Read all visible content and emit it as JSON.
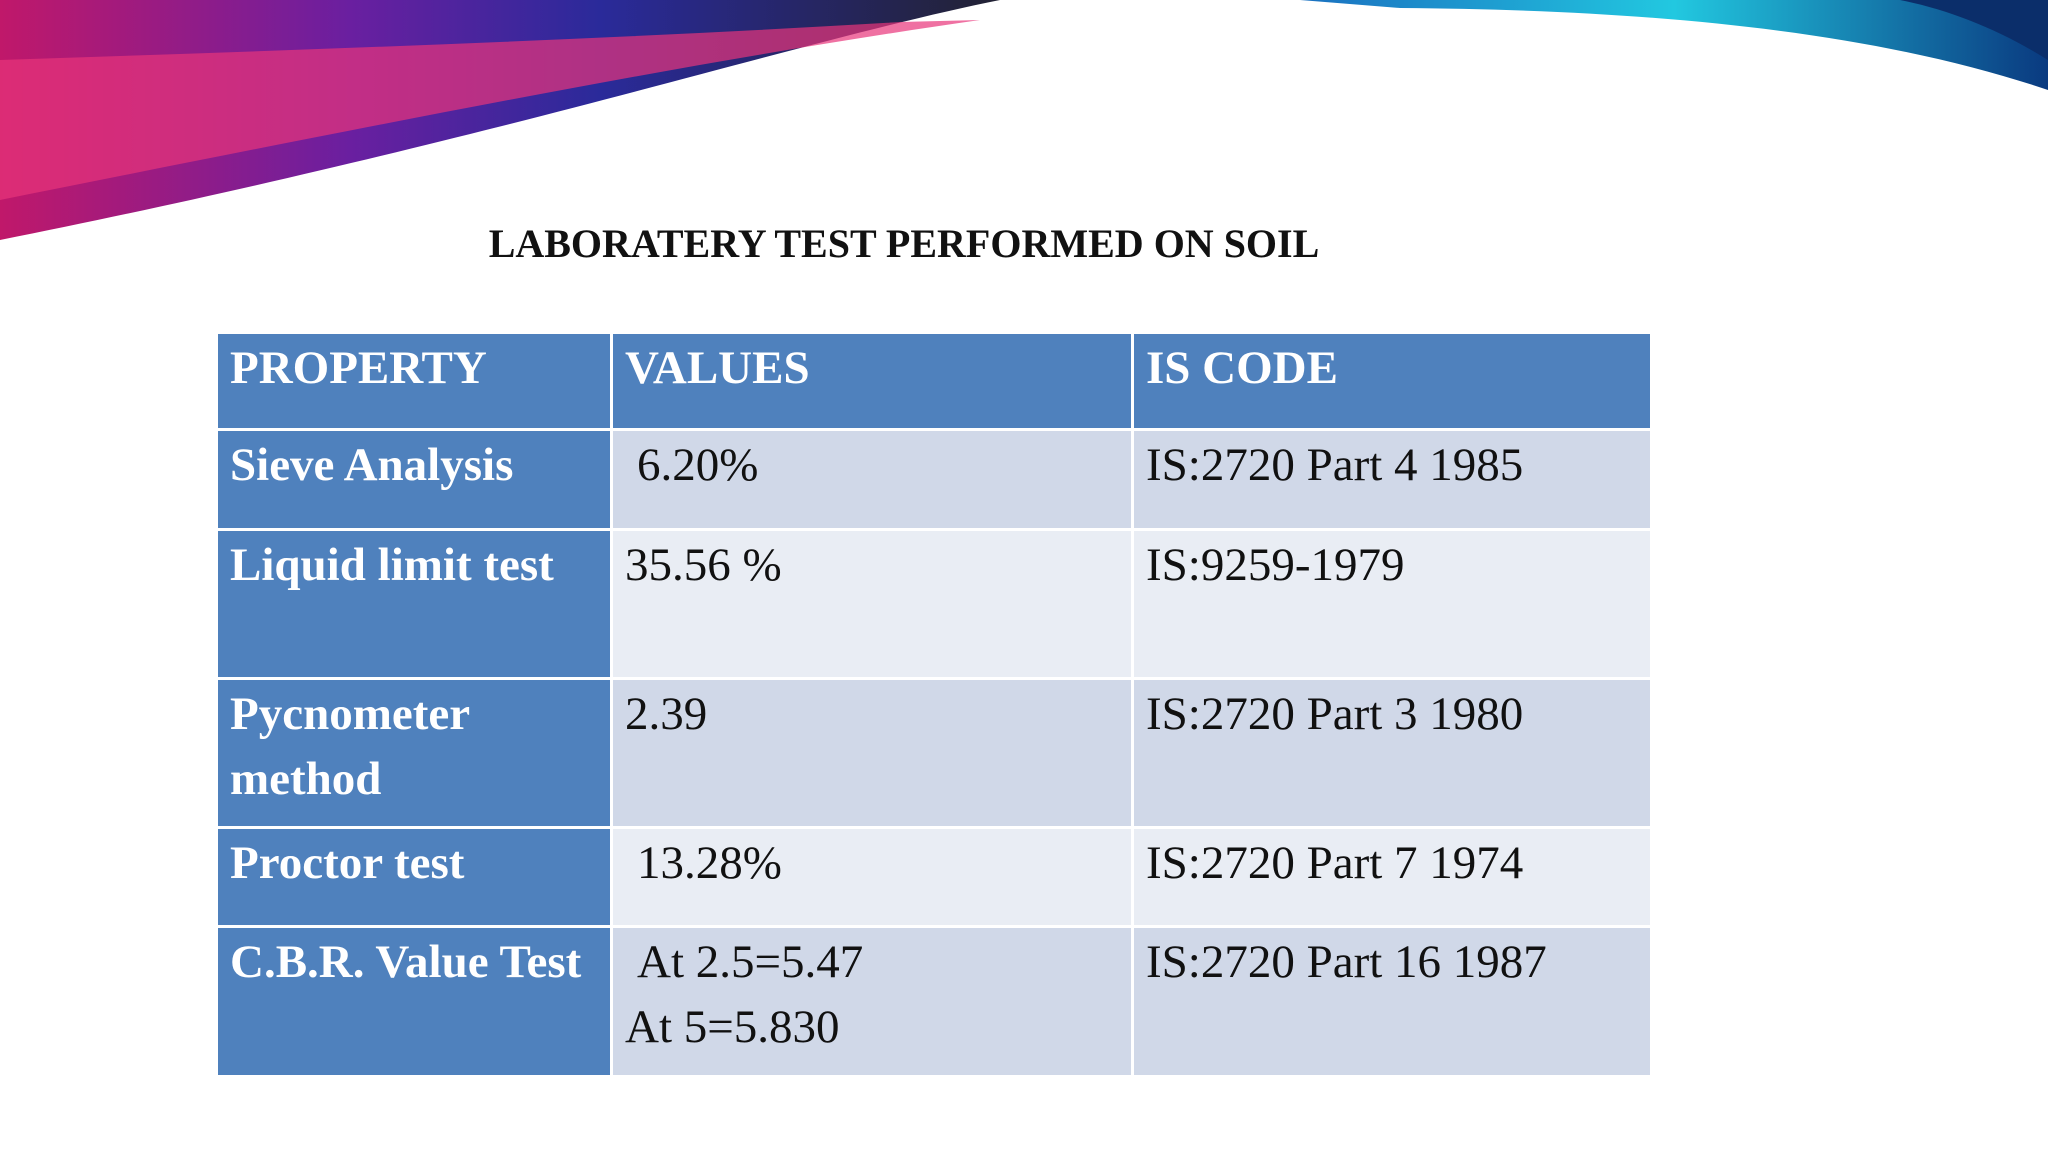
{
  "title": "LABORATERY TEST PERFORMED ON SOIL",
  "table": {
    "header": [
      "PROPERTY",
      "VALUES",
      "IS CODE"
    ],
    "rows": [
      [
        "Sieve Analysis",
        "6.20%",
        "IS:2720 Part 4 1985"
      ],
      [
        "Liquid limit test",
        "35.56 %",
        "IS:9259-1979"
      ],
      [
        "Pycnometer method",
        "2.39",
        "IS:2720 Part 3 1980"
      ],
      [
        "Proctor test",
        "13.28%",
        "IS:2720 Part 7 1974"
      ],
      [
        "C.B.R. Value Test",
        [
          "At 2.5=5.47",
          "At 5=5.830"
        ],
        "IS:2720 Part 16 1987"
      ]
    ]
  }
}
